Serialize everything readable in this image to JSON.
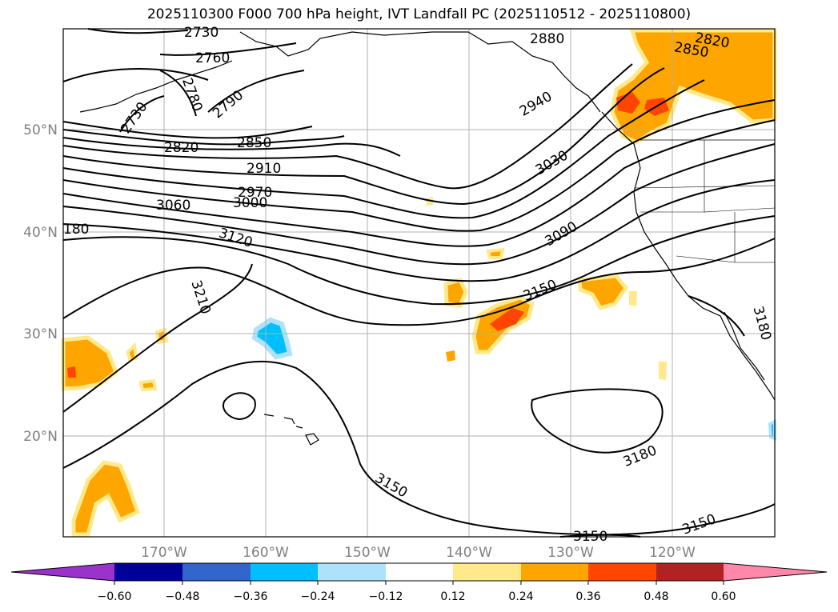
{
  "title": "2025110300 F000 700 hPa height, IVT Landfall PC (2025110512 - 2025110800)",
  "lat_ticks": [
    "50°N",
    "40°N",
    "30°N",
    "20°N"
  ],
  "lon_ticks": [
    "170°W",
    "160°W",
    "150°W",
    "140°W",
    "130°W",
    "120°W"
  ],
  "contour_labels": [
    "2730",
    "2760",
    "2790",
    "2730",
    "2780",
    "2820",
    "2850",
    "2910",
    "2970",
    "3000",
    "3060",
    "3120",
    "180",
    "3210",
    "2880",
    "2820",
    "2850",
    "2940",
    "3030",
    "3090",
    "3150",
    "3180",
    "3180",
    "3150",
    "3150",
    "3150"
  ],
  "colorbar": {
    "ticks": [
      "−0.60",
      "−0.48",
      "−0.36",
      "−0.24",
      "−0.12",
      "0.12",
      "0.24",
      "0.36",
      "0.48",
      "0.60"
    ],
    "colors": [
      "#9933cc",
      "#000099",
      "#3366cc",
      "#00bfff",
      "#aee2fa",
      "#ffffff",
      "#ffe98a",
      "#ffa500",
      "#ff4500",
      "#b22222",
      "#ff88aa"
    ]
  },
  "colors": {
    "contour": "#000000",
    "grid": "#b0b0b0",
    "coast": "#000000"
  }
}
